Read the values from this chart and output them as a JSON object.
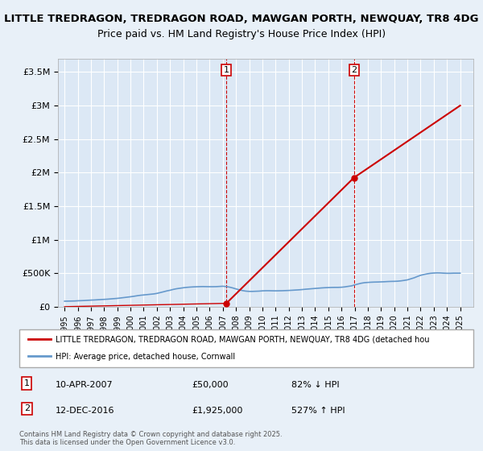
{
  "title_line1": "LITTLE TREDRAGON, TREDRAGON ROAD, MAWGAN PORTH, NEWQUAY, TR8 4DG",
  "title_line2": "Price paid vs. HM Land Registry's House Price Index (HPI)",
  "background_color": "#e8f0f8",
  "plot_bg_color": "#dce8f5",
  "ylim": [
    0,
    3700000
  ],
  "yticks": [
    0,
    500000,
    1000000,
    1500000,
    2000000,
    2500000,
    3000000,
    3500000
  ],
  "ytick_labels": [
    "£0",
    "£500K",
    "£1M",
    "£1.5M",
    "£2M",
    "£2.5M",
    "£3M",
    "£3.5M"
  ],
  "xlim_start": 1994.5,
  "xlim_end": 2026.0,
  "xticks": [
    1995,
    1996,
    1997,
    1998,
    1999,
    2000,
    2001,
    2002,
    2003,
    2004,
    2005,
    2006,
    2007,
    2008,
    2009,
    2010,
    2011,
    2012,
    2013,
    2014,
    2015,
    2016,
    2017,
    2018,
    2019,
    2020,
    2021,
    2022,
    2023,
    2024,
    2025
  ],
  "hpi_x": [
    1995,
    1995.25,
    1995.5,
    1995.75,
    1996,
    1996.25,
    1996.5,
    1996.75,
    1997,
    1997.25,
    1997.5,
    1997.75,
    1998,
    1998.25,
    1998.5,
    1998.75,
    1999,
    1999.25,
    1999.5,
    1999.75,
    2000,
    2000.25,
    2000.5,
    2000.75,
    2001,
    2001.25,
    2001.5,
    2001.75,
    2002,
    2002.25,
    2002.5,
    2002.75,
    2003,
    2003.25,
    2003.5,
    2003.75,
    2004,
    2004.25,
    2004.5,
    2004.75,
    2005,
    2005.25,
    2005.5,
    2005.75,
    2006,
    2006.25,
    2006.5,
    2006.75,
    2007,
    2007.25,
    2007.5,
    2007.75,
    2008,
    2008.25,
    2008.5,
    2008.75,
    2009,
    2009.25,
    2009.5,
    2009.75,
    2010,
    2010.25,
    2010.5,
    2010.75,
    2011,
    2011.25,
    2011.5,
    2011.75,
    2012,
    2012.25,
    2012.5,
    2012.75,
    2013,
    2013.25,
    2013.5,
    2013.75,
    2014,
    2014.25,
    2014.5,
    2014.75,
    2015,
    2015.25,
    2015.5,
    2015.75,
    2016,
    2016.25,
    2016.5,
    2016.75,
    2017,
    2017.25,
    2017.5,
    2017.75,
    2018,
    2018.25,
    2018.5,
    2018.75,
    2019,
    2019.25,
    2019.5,
    2019.75,
    2020,
    2020.25,
    2020.5,
    2020.75,
    2021,
    2021.25,
    2021.5,
    2021.75,
    2022,
    2022.25,
    2022.5,
    2022.75,
    2023,
    2023.25,
    2023.5,
    2023.75,
    2024,
    2024.25,
    2024.5,
    2024.75,
    2025
  ],
  "hpi_y": [
    82000,
    83000,
    84000,
    85000,
    88000,
    90000,
    92000,
    95000,
    98000,
    100000,
    103000,
    106000,
    109000,
    112000,
    116000,
    120000,
    124000,
    130000,
    136000,
    142000,
    148000,
    155000,
    163000,
    170000,
    175000,
    180000,
    185000,
    190000,
    198000,
    210000,
    222000,
    235000,
    245000,
    258000,
    268000,
    275000,
    282000,
    288000,
    292000,
    295000,
    297000,
    299000,
    300000,
    299000,
    298000,
    298000,
    299000,
    302000,
    305000,
    300000,
    292000,
    280000,
    265000,
    252000,
    240000,
    232000,
    228000,
    228000,
    230000,
    232000,
    236000,
    238000,
    238000,
    237000,
    236000,
    237000,
    238000,
    240000,
    242000,
    245000,
    248000,
    251000,
    255000,
    260000,
    264000,
    268000,
    272000,
    276000,
    280000,
    283000,
    285000,
    287000,
    288000,
    288000,
    290000,
    295000,
    303000,
    310000,
    325000,
    338000,
    350000,
    358000,
    362000,
    365000,
    367000,
    368000,
    370000,
    372000,
    375000,
    377000,
    378000,
    380000,
    385000,
    392000,
    400000,
    415000,
    430000,
    450000,
    468000,
    480000,
    490000,
    498000,
    502000,
    504000,
    503000,
    500000,
    498000,
    498000,
    500000,
    500000,
    500000
  ],
  "sale1_x": 2007.27,
  "sale1_y": 50000,
  "sale2_x": 2016.95,
  "sale2_y": 1925000,
  "sale_color": "#cc0000",
  "hpi_color": "#6699cc",
  "vline1_x": 2007.27,
  "vline2_x": 2016.95,
  "vline_color": "#cc0000",
  "marker1_num": "1",
  "marker2_num": "2",
  "legend_label1": "LITTLE TREDRAGON, TREDRAGON ROAD, MAWGAN PORTH, NEWQUAY, TR8 4DG (detached hou",
  "legend_label2": "HPI: Average price, detached house, Cornwall",
  "annotation1_date": "10-APR-2007",
  "annotation1_price": "£50,000",
  "annotation1_hpi": "82% ↓ HPI",
  "annotation2_date": "12-DEC-2016",
  "annotation2_price": "£1,925,000",
  "annotation2_hpi": "527% ↑ HPI",
  "footer": "Contains HM Land Registry data © Crown copyright and database right 2025.\nThis data is licensed under the Open Government Licence v3.0.",
  "grid_color": "#ffffff",
  "title_fontsize": 9.5,
  "subtitle_fontsize": 9,
  "tick_fontsize": 8
}
